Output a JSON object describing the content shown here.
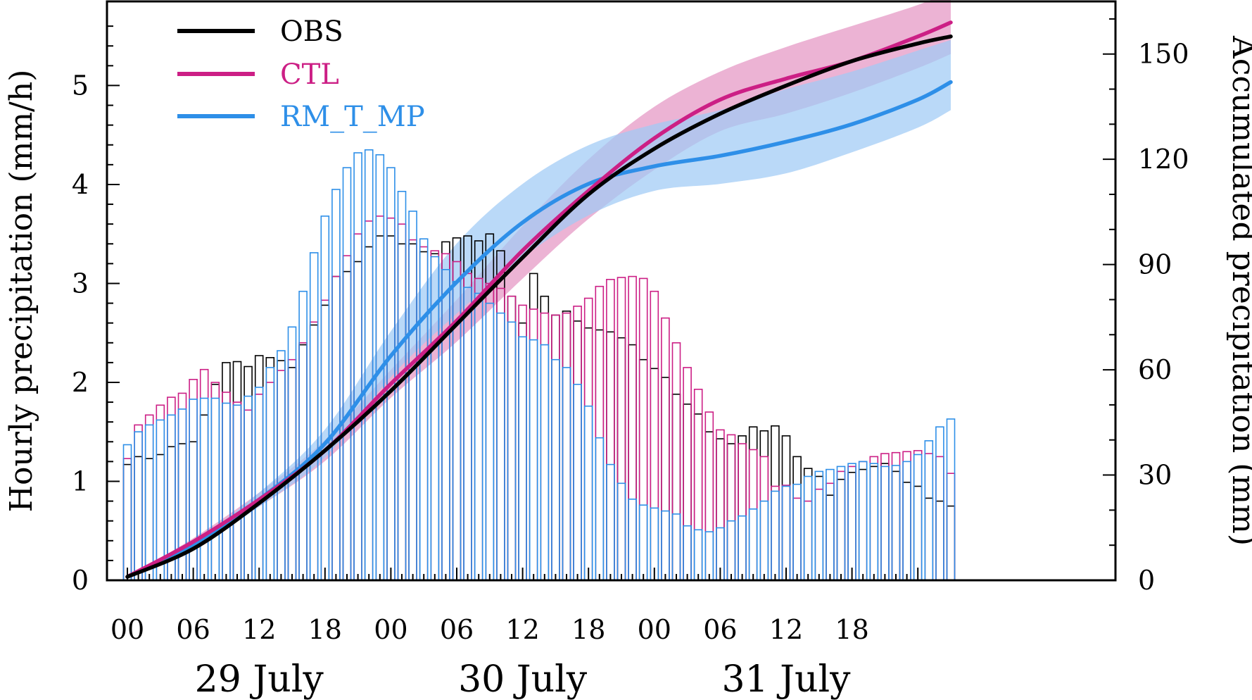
{
  "chart_data": {
    "type": "bar+line",
    "title": "",
    "left_axis": {
      "label": "Hourly precipitation (mm/h)",
      "ylim": [
        0,
        5.85
      ],
      "ticks": [
        "0",
        "1",
        "2",
        "3",
        "4",
        "5"
      ]
    },
    "right_axis": {
      "label": "Accumulated precipitation (mm)",
      "ylim": [
        0,
        165
      ],
      "ticks": [
        "0",
        "30",
        "60",
        "90",
        "120",
        "150"
      ]
    },
    "x_ticks": [
      "00",
      "06",
      "12",
      "18",
      "00",
      "06",
      "12",
      "18",
      "00",
      "06",
      "12",
      "18"
    ],
    "date_labels": [
      "29 July",
      "30 July",
      "31 July"
    ],
    "legend": {
      "position": "top-left",
      "entries": [
        "OBS",
        "CTL",
        "RM_T_MP"
      ]
    },
    "colors": {
      "OBS": "#000000",
      "CTL": "#cc1f85",
      "RM_T_MP": "#2e8fe8",
      "CTL_band": "#e495c3",
      "RM_band": "#9fcbf5"
    },
    "hourly_series": [
      {
        "name": "OBS",
        "values": [
          1.17,
          1.25,
          1.23,
          1.27,
          1.35,
          1.38,
          1.4,
          1.67,
          1.98,
          2.2,
          2.21,
          2.16,
          2.27,
          2.25,
          2.22,
          2.15,
          2.38,
          2.58,
          2.78,
          3.07,
          3.12,
          3.22,
          3.37,
          3.48,
          3.48,
          3.4,
          3.4,
          3.32,
          3.3,
          3.42,
          3.46,
          3.48,
          3.43,
          3.5,
          3.33,
          2.87,
          2.6,
          3.1,
          2.87,
          2.68,
          2.72,
          2.62,
          2.55,
          2.53,
          2.51,
          2.45,
          2.38,
          2.23,
          2.14,
          2.05,
          1.88,
          1.78,
          1.68,
          1.5,
          1.43,
          1.38,
          1.46,
          1.55,
          1.51,
          1.56,
          1.46,
          1.25,
          1.13,
          1.05,
          0.86,
          1.02,
          1.09,
          1.12,
          1.15,
          1.18,
          1.1,
          0.99,
          0.95,
          0.83,
          0.8,
          0.75
        ]
      },
      {
        "name": "CTL",
        "values": [
          1.23,
          1.57,
          1.67,
          1.77,
          1.85,
          1.89,
          2.03,
          2.13,
          2.0,
          1.9,
          1.8,
          1.72,
          1.88,
          2.0,
          2.12,
          2.23,
          2.4,
          2.61,
          2.83,
          3.07,
          3.28,
          3.5,
          3.63,
          3.68,
          3.66,
          3.6,
          3.44,
          3.37,
          3.33,
          3.3,
          3.22,
          3.1,
          3.05,
          3.0,
          2.95,
          2.87,
          2.78,
          2.74,
          2.7,
          2.68,
          2.7,
          2.77,
          2.85,
          2.97,
          3.04,
          3.06,
          3.07,
          3.05,
          2.92,
          2.65,
          2.4,
          2.15,
          1.93,
          1.7,
          1.52,
          1.47,
          1.38,
          1.32,
          1.25,
          0.95,
          0.96,
          0.83,
          0.8,
          0.92,
          0.98,
          1.1,
          1.15,
          1.2,
          1.25,
          1.28,
          1.29,
          1.3,
          1.31,
          1.28,
          1.25,
          1.08
        ]
      },
      {
        "name": "RM_T_MP",
        "values": [
          1.37,
          1.5,
          1.57,
          1.62,
          1.67,
          1.73,
          1.83,
          1.84,
          1.84,
          1.79,
          1.77,
          1.86,
          1.95,
          2.15,
          2.32,
          2.56,
          2.92,
          3.31,
          3.68,
          3.95,
          4.17,
          4.32,
          4.35,
          4.3,
          4.17,
          3.93,
          3.73,
          3.45,
          3.27,
          3.14,
          3.02,
          2.96,
          2.9,
          2.8,
          2.7,
          2.61,
          2.46,
          2.43,
          2.38,
          2.23,
          2.15,
          1.98,
          1.76,
          1.44,
          1.17,
          0.98,
          0.82,
          0.76,
          0.73,
          0.7,
          0.67,
          0.55,
          0.51,
          0.49,
          0.53,
          0.6,
          0.65,
          0.72,
          0.8,
          0.9,
          0.95,
          0.97,
          1.05,
          1.1,
          1.12,
          1.15,
          1.18,
          1.2,
          1.18,
          1.15,
          1.16,
          1.2,
          1.27,
          1.41,
          1.55,
          1.63
        ]
      }
    ],
    "accumulated_series": [
      {
        "name": "OBS",
        "x": [
          0,
          6,
          12,
          18,
          24,
          30,
          36,
          42,
          48,
          54,
          60,
          66,
          72,
          75
        ],
        "values": [
          1,
          9,
          22,
          37,
          54,
          73,
          92,
          110,
          123,
          133,
          141,
          148,
          153,
          155
        ]
      },
      {
        "name": "CTL",
        "x": [
          0,
          6,
          12,
          18,
          24,
          30,
          36,
          42,
          48,
          54,
          60,
          66,
          72,
          75
        ],
        "values": [
          1,
          11,
          23,
          37,
          56,
          74,
          94,
          111,
          126,
          137,
          143,
          148,
          155,
          159
        ]
      },
      {
        "name": "RM_T_MP",
        "x": [
          0,
          6,
          12,
          18,
          24,
          30,
          36,
          42,
          48,
          54,
          60,
          66,
          72,
          75
        ],
        "values": [
          1,
          10,
          23,
          39,
          64,
          85,
          102,
          113,
          118,
          121,
          125,
          130,
          137,
          142
        ]
      }
    ],
    "accumulated_bands": [
      {
        "name": "CTL",
        "x": [
          0,
          6,
          12,
          18,
          24,
          30,
          36,
          42,
          48,
          54,
          60,
          66,
          72,
          75
        ],
        "low": [
          1,
          10,
          21,
          34,
          52,
          68,
          86,
          103,
          117,
          128,
          133,
          139,
          146,
          150
        ],
        "high": [
          1,
          12,
          25,
          40,
          60,
          80,
          101,
          120,
          135,
          145,
          152,
          158,
          164,
          168
        ]
      },
      {
        "name": "RM_T_MP",
        "x": [
          0,
          6,
          12,
          18,
          24,
          30,
          36,
          42,
          48,
          54,
          60,
          66,
          72,
          75
        ],
        "low": [
          1,
          9,
          21,
          35,
          58,
          76,
          92,
          104,
          111,
          113,
          116,
          122,
          129,
          134
        ],
        "high": [
          1,
          11,
          25,
          43,
          71,
          96,
          113,
          124,
          130,
          134,
          140,
          145,
          151,
          154
        ]
      }
    ]
  }
}
